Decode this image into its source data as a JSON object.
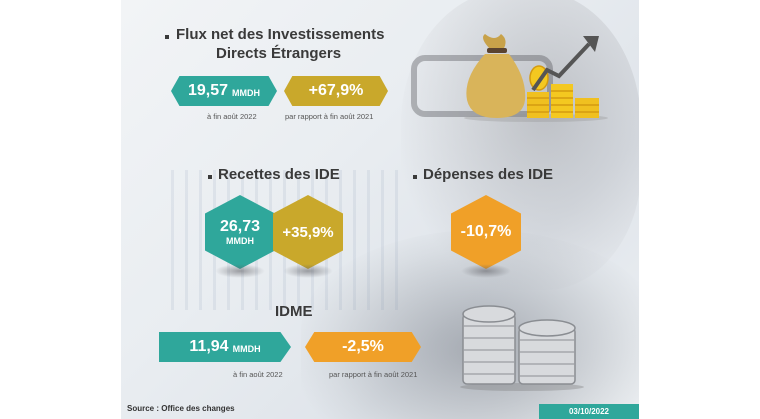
{
  "section1": {
    "title_line1": "Flux net des Investissements",
    "title_line2": "Directs Étrangers",
    "value": "19,57",
    "unit": "MMDH",
    "change": "+67,9%",
    "caption_left": "à fin août 2022",
    "caption_right": "par rapport à fin août 2021"
  },
  "section2": {
    "title": "Recettes des IDE",
    "value": "26,73",
    "unit": "MMDH",
    "change": "+35,9%"
  },
  "section3": {
    "title": "Dépenses des IDE",
    "change": "-10,7%"
  },
  "section4": {
    "title": "IDME",
    "value": "11,94",
    "unit": "MMDH",
    "change": "-2,5%",
    "caption_left": "à fin août 2022",
    "caption_right": "par rapport à fin août 2021"
  },
  "footer": {
    "source": "Source : Office des changes",
    "date": "03/10/2022"
  },
  "colors": {
    "teal": "#2fa79b",
    "gold": "#c9a82b",
    "orange": "#f0a028"
  },
  "icons": [
    "money-bag-growth-icon",
    "coin-stacks-icon"
  ]
}
